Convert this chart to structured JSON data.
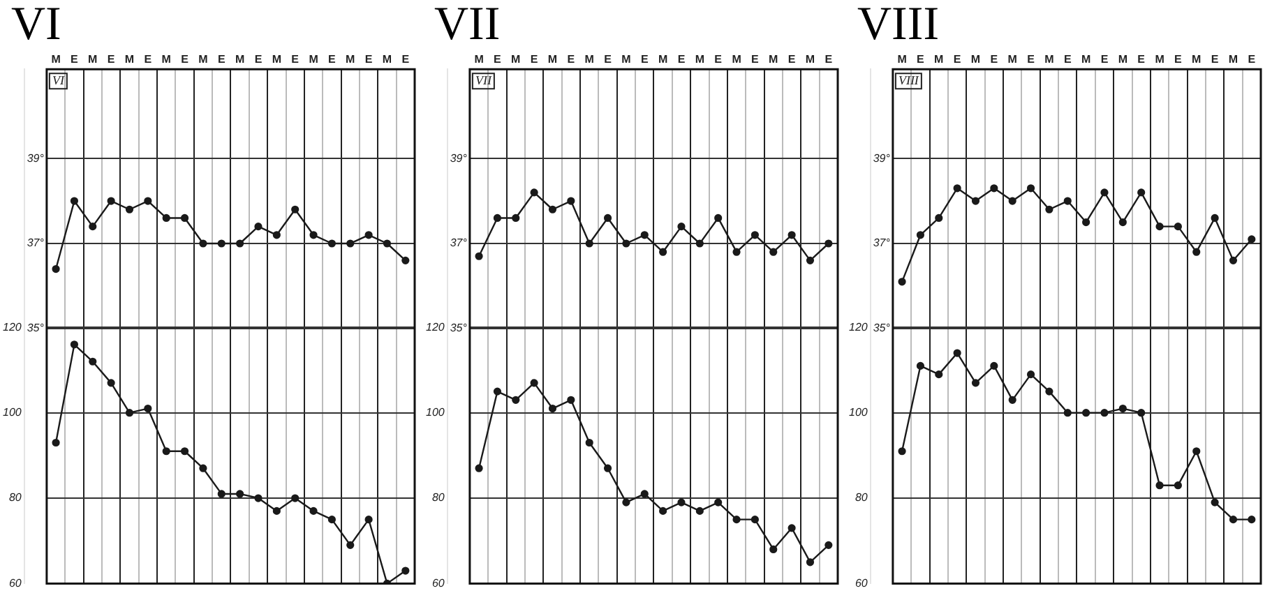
{
  "chart_data": [
    {
      "type": "line",
      "title": "VI",
      "categories": [
        "M",
        "E",
        "M",
        "E",
        "M",
        "E",
        "M",
        "E",
        "M",
        "E",
        "M",
        "E",
        "M",
        "E",
        "M",
        "E",
        "M",
        "E",
        "M",
        "E"
      ],
      "series": [
        {
          "color": "#1a1a1a",
          "values": [
            36.4,
            38.0,
            37.4,
            38.0,
            37.8,
            38.0,
            37.6,
            37.6,
            37.0,
            37.0,
            37.0,
            37.4,
            37.2,
            37.8,
            37.2,
            37.0,
            37.0,
            37.2,
            37.0,
            36.6
          ]
        },
        {
          "color": "#1a1a1a",
          "axis": "y2",
          "values": [
            93,
            116,
            112,
            107,
            100,
            101,
            91,
            91,
            87,
            81,
            81,
            80,
            77,
            80,
            77,
            75,
            69,
            75,
            60,
            63
          ]
        }
      ],
      "ylim": [
        29,
        41.1
      ],
      "yticks": [
        {
          "value": 39,
          "label": "39°"
        },
        {
          "value": 37,
          "label": "37°"
        },
        {
          "value": 35,
          "label": "35°"
        }
      ],
      "y2lim": [
        60,
        180.5
      ],
      "y2ticks": [
        120,
        100,
        80,
        60
      ],
      "grid": true,
      "marker": "circle",
      "annotations": [
        "VI"
      ]
    },
    {
      "type": "line",
      "title": "VII",
      "categories": [
        "M",
        "E",
        "M",
        "E",
        "M",
        "E",
        "M",
        "E",
        "M",
        "E",
        "M",
        "E",
        "M",
        "E",
        "M",
        "E",
        "M",
        "E",
        "M",
        "E"
      ],
      "series": [
        {
          "color": "#1a1a1a",
          "values": [
            36.7,
            37.6,
            37.6,
            38.2,
            37.8,
            38.0,
            37.0,
            37.6,
            37.0,
            37.2,
            36.8,
            37.4,
            37.0,
            37.6,
            36.8,
            37.2,
            36.8,
            37.2,
            36.6,
            37.0
          ]
        },
        {
          "color": "#1a1a1a",
          "axis": "y2",
          "values": [
            87,
            105,
            103,
            107,
            101,
            103,
            93,
            87,
            79,
            81,
            77,
            79,
            77,
            79,
            75,
            75,
            68,
            73,
            65,
            69
          ]
        }
      ],
      "ylim": [
        29,
        41.1
      ],
      "yticks": [
        {
          "value": 39,
          "label": "39°"
        },
        {
          "value": 37,
          "label": "37°"
        },
        {
          "value": 35,
          "label": "35°"
        }
      ],
      "y2lim": [
        60,
        180.5
      ],
      "y2ticks": [
        120,
        100,
        80,
        60
      ],
      "grid": true,
      "marker": "circle",
      "annotations": [
        "VII"
      ]
    },
    {
      "type": "line",
      "title": "VIII",
      "categories": [
        "M",
        "E",
        "M",
        "E",
        "M",
        "E",
        "M",
        "E",
        "M",
        "E",
        "M",
        "E",
        "M",
        "E",
        "M",
        "E",
        "M",
        "E",
        "M",
        "E"
      ],
      "series": [
        {
          "color": "#1a1a1a",
          "values": [
            36.1,
            37.2,
            37.6,
            38.3,
            38.0,
            38.3,
            38.0,
            38.3,
            37.8,
            38.0,
            37.5,
            38.2,
            37.5,
            38.2,
            37.4,
            37.4,
            36.8,
            37.6,
            36.6,
            37.1
          ]
        },
        {
          "color": "#1a1a1a",
          "axis": "y2",
          "values": [
            91,
            111,
            109,
            114,
            107,
            111,
            103,
            109,
            105,
            100,
            100,
            100,
            101,
            100,
            83,
            83,
            91,
            79,
            75,
            75
          ]
        }
      ],
      "ylim": [
        29,
        41.1
      ],
      "yticks": [
        {
          "value": 39,
          "label": "39°"
        },
        {
          "value": 37,
          "label": "37°"
        },
        {
          "value": 35,
          "label": "35°"
        }
      ],
      "y2lim": [
        60,
        180.5
      ],
      "y2ticks": [
        120,
        100,
        80,
        60
      ],
      "grid": true,
      "marker": "circle",
      "annotations": [
        "VIII"
      ]
    }
  ]
}
